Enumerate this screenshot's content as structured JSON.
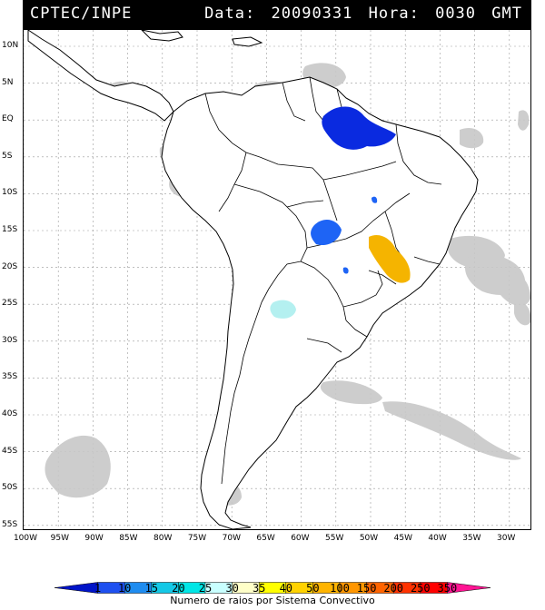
{
  "header": {
    "source": "CPTEC/INPE",
    "date_label": "Data:",
    "date_value": "20090331",
    "time_label": "Hora:",
    "time_value": "0030",
    "timezone": "GMT"
  },
  "map": {
    "lat_labels": [
      "10N",
      "5N",
      "EQ",
      "5S",
      "10S",
      "15S",
      "20S",
      "25S",
      "30S",
      "35S",
      "40S",
      "45S",
      "50S",
      "55S"
    ],
    "lon_labels": [
      "100W",
      "95W",
      "90W",
      "85W",
      "80W",
      "75W",
      "70W",
      "65W",
      "60W",
      "55W",
      "50W",
      "45W",
      "40W",
      "35W",
      "30W"
    ],
    "cell_colors": {
      "cloud": "#c8c8c8",
      "level_1": "#0a2ae0",
      "level_10": "#1e64f5",
      "level_15": "#1e96f0",
      "level_20": "#1ec8e6",
      "level_25": "#b4f0f0",
      "level_100": "#f5b400"
    }
  },
  "legend": {
    "labels": [
      "1",
      "10",
      "15",
      "20",
      "25",
      "30",
      "35",
      "40",
      "50",
      "100",
      "150",
      "200",
      "250",
      "350"
    ],
    "colors": [
      "#0014c8",
      "#1e50f0",
      "#1e8cf0",
      "#14c8e6",
      "#00e6e6",
      "#c8ffff",
      "#ffffc8",
      "#ffff00",
      "#ffd200",
      "#ffb400",
      "#ff9600",
      "#ff6400",
      "#ff3200",
      "#ff0000",
      "#ff1493"
    ],
    "title": "Numero de raios por Sistema Convectivo"
  }
}
